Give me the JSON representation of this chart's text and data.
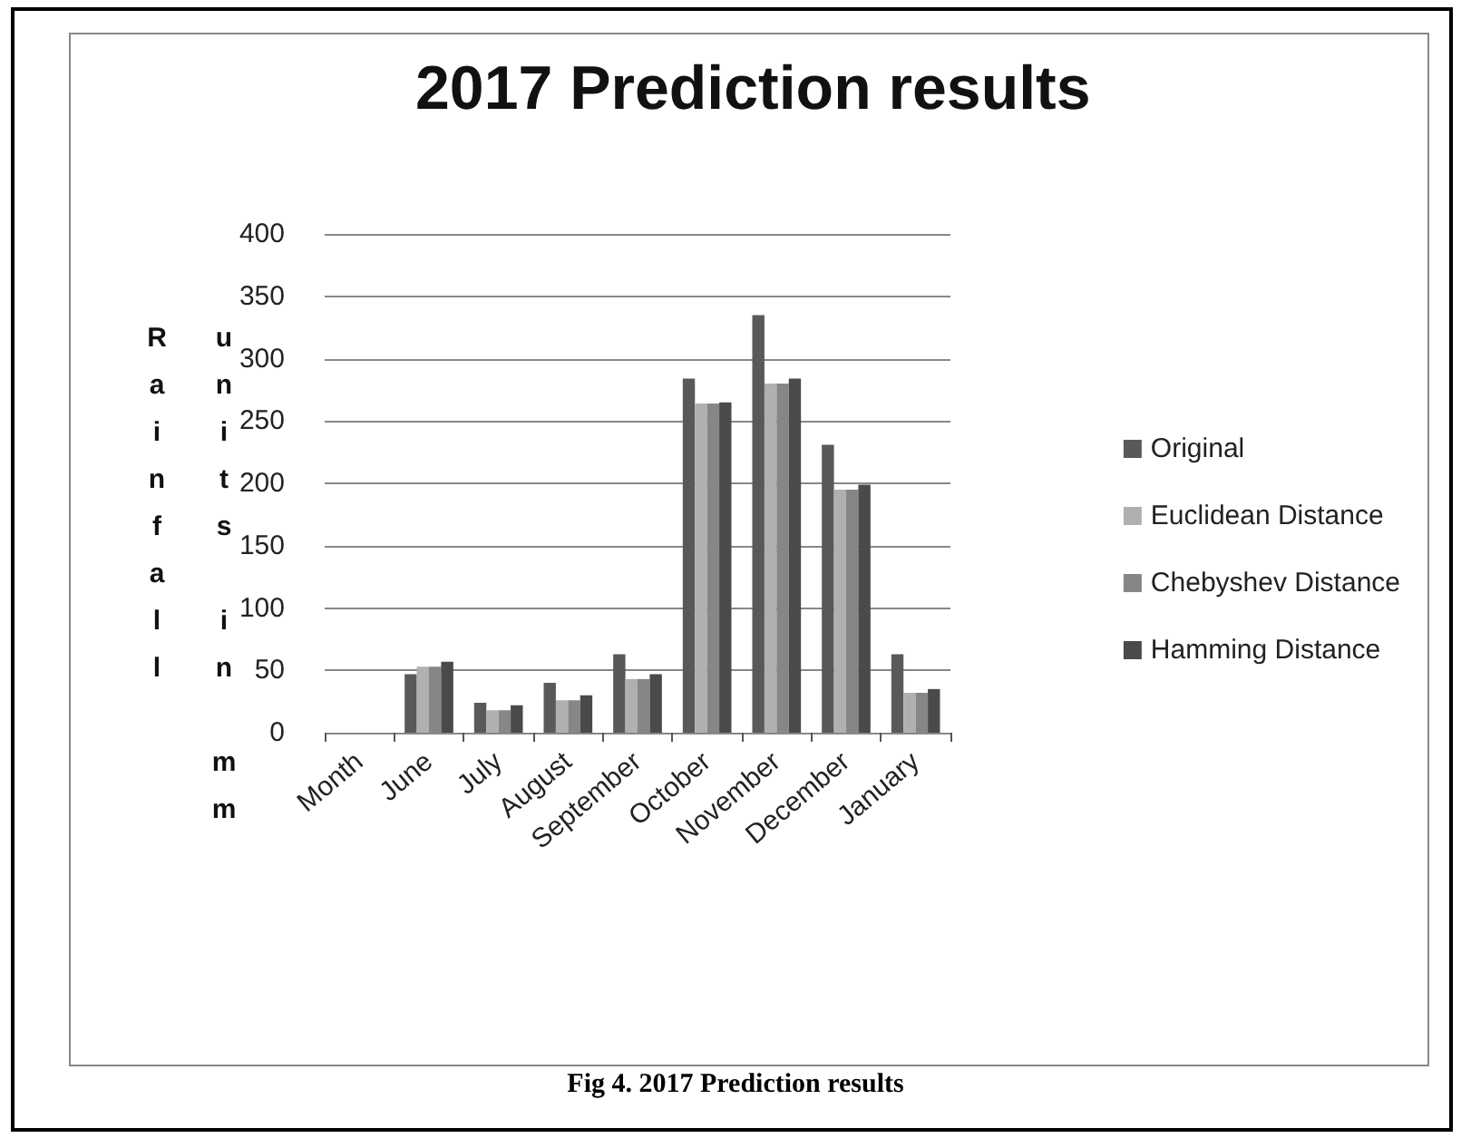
{
  "chart_data": {
    "type": "bar",
    "title": "2017 Prediction results",
    "ylabel": "Rainfall units in mm",
    "annotations": [
      "Fig 4. 2017 Prediction results"
    ],
    "categories": [
      "Month",
      "June",
      "July",
      "August",
      "September",
      "October",
      "November",
      "December",
      "January"
    ],
    "series": [
      {
        "name": "Original",
        "color": "#595959",
        "values": [
          null,
          47,
          24,
          40,
          63,
          284,
          335,
          231,
          63
        ]
      },
      {
        "name": "Euclidean Distance",
        "color": "#b0b0b0",
        "values": [
          null,
          53,
          18,
          26,
          43,
          264,
          280,
          195,
          32
        ]
      },
      {
        "name": "Chebyshev Distance",
        "color": "#868686",
        "values": [
          null,
          53,
          18,
          26,
          43,
          264,
          280,
          195,
          32
        ]
      },
      {
        "name": "Hamming Distance",
        "color": "#4a4a4a",
        "values": [
          null,
          57,
          22,
          30,
          47,
          265,
          284,
          199,
          35
        ]
      }
    ],
    "ylim": [
      0,
      400
    ],
    "yticks": [
      0,
      50,
      100,
      150,
      200,
      250,
      300,
      350,
      400
    ],
    "grid": "y",
    "legend": "right"
  }
}
